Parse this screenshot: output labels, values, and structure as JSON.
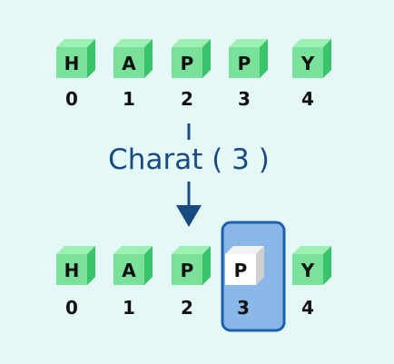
{
  "top_row": {
    "letters": [
      "H",
      "A",
      "P",
      "P",
      "Y"
    ],
    "indices": [
      "0",
      "1",
      "2",
      "3",
      "4"
    ]
  },
  "operation": {
    "label": "Charat ( 3 )"
  },
  "bottom_row": {
    "letters": [
      "H",
      "A",
      "P",
      "P",
      "Y"
    ],
    "indices": [
      "0",
      "1",
      "2",
      "3",
      "4"
    ],
    "selected_index": 3
  },
  "colors": {
    "cube_front": "#7ae19a",
    "cube_top": "#9cf0b2",
    "cube_side": "#39c36a",
    "selected_front": "#ffffff",
    "selected_top": "#f2f2f2",
    "selected_side": "#cfcfcf",
    "highlight_fill": "#88b7e8",
    "highlight_stroke": "#1f5fae",
    "arrow": "#174a7e"
  }
}
